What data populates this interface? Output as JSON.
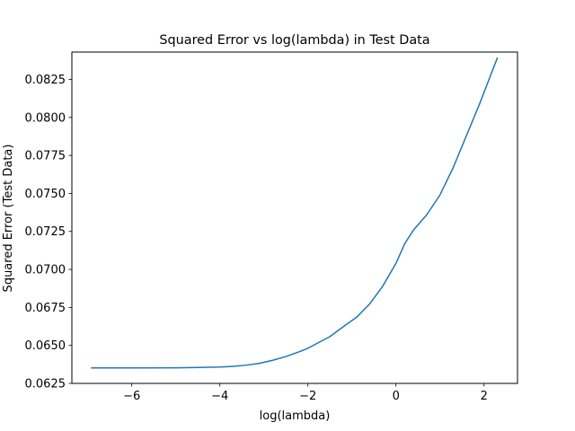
{
  "chart_data": {
    "type": "line",
    "title": "Squared Error vs log(lambda) in Test Data",
    "xlabel": "log(lambda)",
    "ylabel": "Squared Error (Test Data)",
    "xlim": [
      -7.36,
      2.76
    ],
    "ylim": [
      0.0625,
      0.0843
    ],
    "xticks": [
      -6,
      -4,
      -2,
      0,
      2
    ],
    "xtick_labels": [
      "−6",
      "−4",
      "−2",
      "0",
      "2"
    ],
    "yticks": [
      0.0625,
      0.065,
      0.0675,
      0.07,
      0.0725,
      0.075,
      0.0775,
      0.08,
      0.0825
    ],
    "ytick_labels": [
      "0.0625",
      "0.0650",
      "0.0675",
      "0.0700",
      "0.0725",
      "0.0750",
      "0.0775",
      "0.0800",
      "0.0825"
    ],
    "grid": false,
    "series": [
      {
        "color": "#1f77b4",
        "x": [
          -6.91,
          -6.0,
          -5.0,
          -4.5,
          -4.0,
          -3.7,
          -3.4,
          -3.1,
          -2.8,
          -2.5,
          -2.2,
          -2.0,
          -1.8,
          -1.5,
          -1.2,
          -0.9,
          -0.6,
          -0.3,
          0.0,
          0.2,
          0.4,
          0.7,
          1.0,
          1.3,
          1.6,
          1.9,
          2.1,
          2.3
        ],
        "y": [
          0.06352,
          0.06352,
          0.06353,
          0.06355,
          0.06358,
          0.06362,
          0.0637,
          0.06382,
          0.06402,
          0.06427,
          0.06458,
          0.06481,
          0.06512,
          0.06558,
          0.06622,
          0.06684,
          0.06772,
          0.0689,
          0.0704,
          0.0717,
          0.0726,
          0.0736,
          0.0749,
          0.0767,
          0.0788,
          0.0809,
          0.0824,
          0.0839
        ]
      }
    ]
  }
}
